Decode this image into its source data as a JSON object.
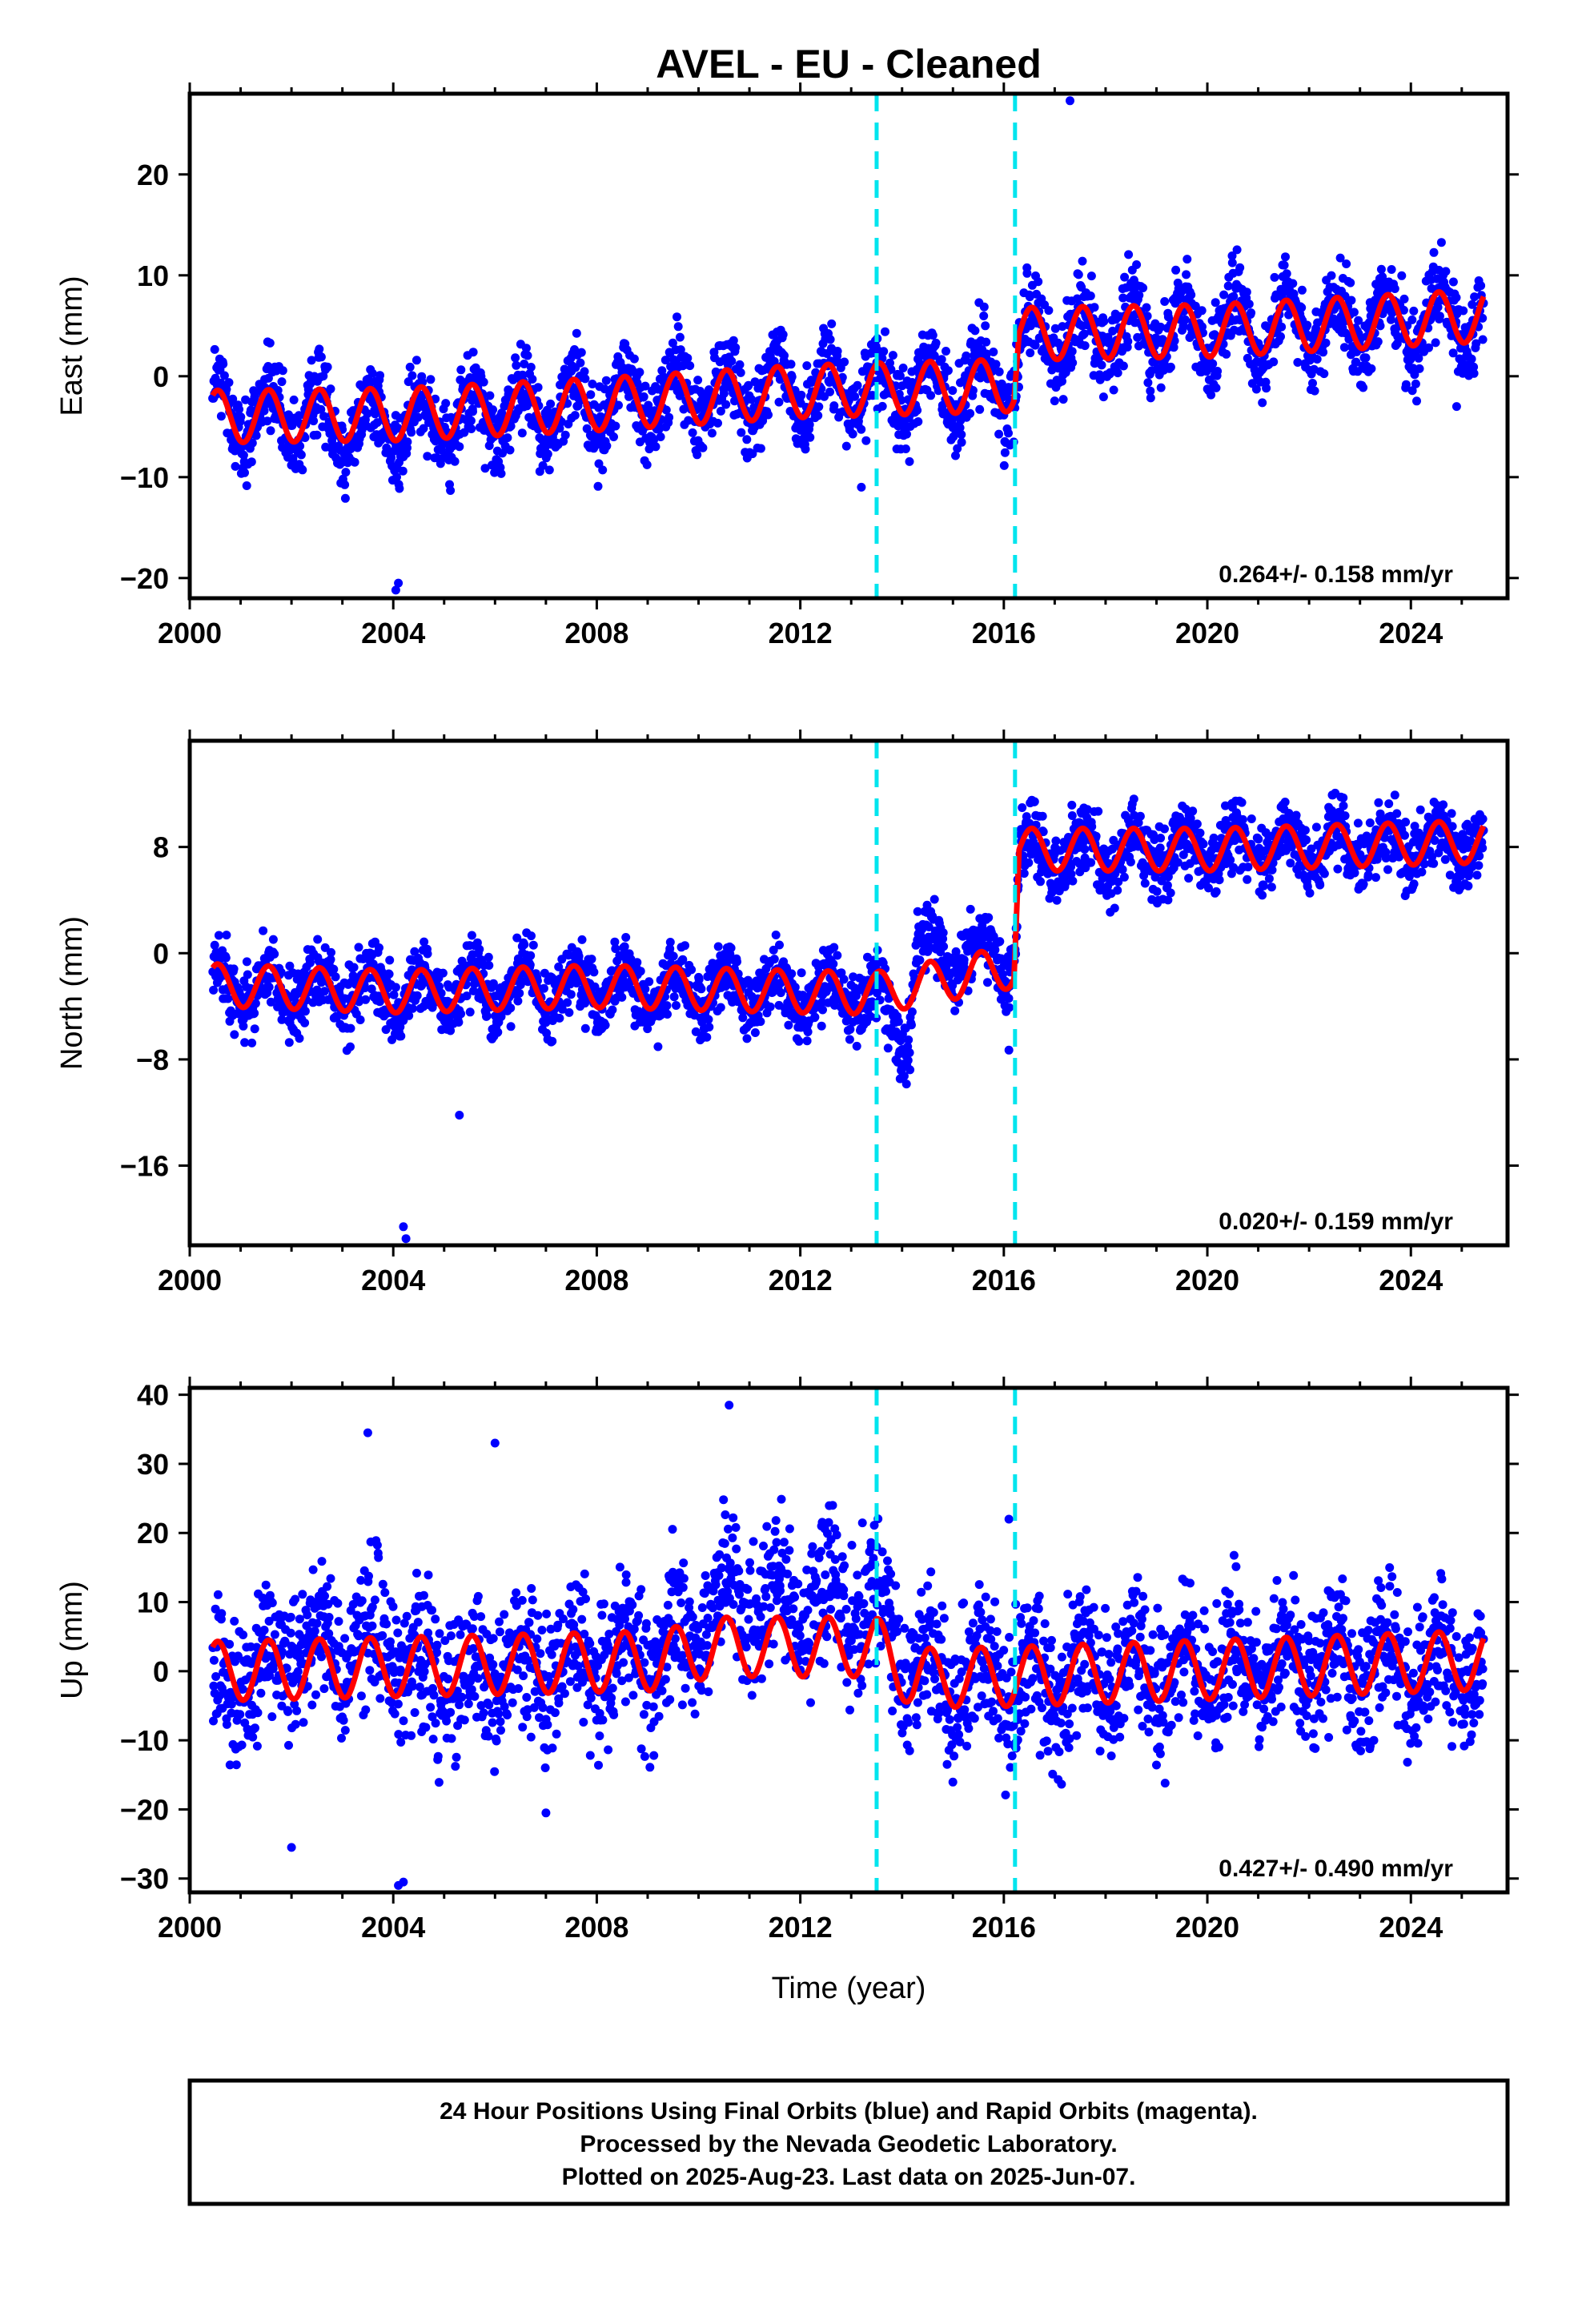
{
  "colors": {
    "data_points": "#0000ff",
    "model_line": "#ff0000",
    "offset_lines": "#00e5ee",
    "frame": "#000000"
  },
  "chart_data": [
    {
      "type": "scatter",
      "title": "AVEL  - EU - Cleaned",
      "ylabel": "East (mm)",
      "xlabel": "",
      "xlim": [
        2000,
        2025.9
      ],
      "ylim": [
        -22,
        28
      ],
      "xticks": [
        2000,
        2004,
        2008,
        2012,
        2016,
        2020,
        2024
      ],
      "yticks": [
        -20,
        -10,
        0,
        10,
        20
      ],
      "offset_epochs": [
        2013.5,
        2016.22
      ],
      "rate_annotation": "0.264+/- 0.158 mm/yr",
      "series": [
        {
          "label": "24-hour positions",
          "color": "#0000ff",
          "start": 2000.45,
          "end": 2025.43,
          "level_anchors": [
            [
              2000.45,
              -3.4
            ],
            [
              2004.0,
              -5.0
            ],
            [
              2008.0,
              -2.6
            ],
            [
              2012.0,
              -1.3
            ],
            [
              2016.2,
              -0.9
            ],
            [
              2016.3,
              4.0
            ],
            [
              2020.0,
              4.5
            ],
            [
              2025.43,
              5.8
            ]
          ],
          "seasonal_amplitude": 3.0,
          "scatter": 2.0,
          "sample_count": 2600,
          "outliers": [
            [
              2017.3,
              27.3
            ],
            [
              2004.1,
              -20.5
            ],
            [
              2004.05,
              -21.2
            ],
            [
              2013.2,
              -11.0
            ],
            [
              2024.9,
              -3.0
            ]
          ]
        },
        {
          "label": "model fit",
          "color": "#ff0000",
          "start": 2000.45,
          "end": 2025.43,
          "level_anchors": [
            [
              2000.45,
              -4.0
            ],
            [
              2004.0,
              -3.8
            ],
            [
              2008.0,
              -2.8
            ],
            [
              2012.0,
              -1.5
            ],
            [
              2016.2,
              -0.9
            ],
            [
              2016.3,
              4.2
            ],
            [
              2020.0,
              4.5
            ],
            [
              2025.43,
              6.0
            ]
          ],
          "seasonal_amplitude": 2.6
        }
      ]
    },
    {
      "type": "scatter",
      "title": "",
      "ylabel": "North (mm)",
      "xlabel": "",
      "xlim": [
        2000,
        2025.9
      ],
      "ylim": [
        -22,
        16
      ],
      "xticks": [
        2000,
        2004,
        2008,
        2012,
        2016,
        2020,
        2024
      ],
      "yticks": [
        -16,
        -8,
        0,
        8
      ],
      "offset_epochs": [
        2013.5,
        2016.22
      ],
      "rate_annotation": "0.020+/- 0.159 mm/yr",
      "series": [
        {
          "label": "24-hour positions",
          "color": "#0000ff",
          "start": 2000.45,
          "end": 2025.43,
          "level_anchors": [
            [
              2000.45,
              -2.5
            ],
            [
              2004.0,
              -3.0
            ],
            [
              2008.0,
              -2.5
            ],
            [
              2012.0,
              -3.0
            ],
            [
              2013.5,
              -3.2
            ],
            [
              2014.1,
              -6.5
            ],
            [
              2014.3,
              0.2
            ],
            [
              2016.2,
              -0.5
            ],
            [
              2016.3,
              7.5
            ],
            [
              2020.0,
              7.8
            ],
            [
              2025.43,
              8.3
            ]
          ],
          "seasonal_amplitude": 1.5,
          "scatter": 1.3,
          "sample_count": 2600,
          "outliers": [
            [
              2004.2,
              -20.6
            ],
            [
              2004.25,
              -21.5
            ],
            [
              2005.3,
              -12.2
            ],
            [
              2016.1,
              -7.3
            ]
          ]
        },
        {
          "label": "model fit",
          "color": "#ff0000",
          "start": 2000.45,
          "end": 2025.43,
          "level_anchors": [
            [
              2000.45,
              -2.4
            ],
            [
              2004.0,
              -2.9
            ],
            [
              2008.0,
              -2.5
            ],
            [
              2012.0,
              -2.9
            ],
            [
              2013.5,
              -3.0
            ],
            [
              2016.2,
              -1.0
            ],
            [
              2016.3,
              7.8
            ],
            [
              2020.0,
              7.8
            ],
            [
              2025.43,
              8.4
            ]
          ],
          "seasonal_amplitude": 1.6
        }
      ]
    },
    {
      "type": "scatter",
      "title": "",
      "ylabel": "Up (mm)",
      "xlabel": "Time (year)",
      "xlim": [
        2000,
        2025.9
      ],
      "ylim": [
        -32,
        41
      ],
      "xticks": [
        2000,
        2004,
        2008,
        2012,
        2016,
        2020,
        2024
      ],
      "yticks": [
        -30,
        -20,
        -10,
        0,
        10,
        20,
        30,
        40
      ],
      "offset_epochs": [
        2013.5,
        2016.22
      ],
      "rate_annotation": "0.427+/- 0.490 mm/yr",
      "series": [
        {
          "label": "24-hour positions",
          "color": "#0000ff",
          "start": 2000.45,
          "end": 2025.43,
          "level_anchors": [
            [
              2000.45,
              -2.0
            ],
            [
              2002.4,
              3.0
            ],
            [
              2003.8,
              4.0
            ],
            [
              2004.5,
              -1.0
            ],
            [
              2009.2,
              2.0
            ],
            [
              2010.3,
              10.0
            ],
            [
              2013.5,
              10.0
            ],
            [
              2014.1,
              0.0
            ],
            [
              2015.0,
              -2.0
            ],
            [
              2020.0,
              0.5
            ],
            [
              2025.43,
              1.0
            ]
          ],
          "seasonal_amplitude": 4.0,
          "scatter": 5.0,
          "sample_count": 2600,
          "outliers": [
            [
              2010.6,
              38.5
            ],
            [
              2006.0,
              33.0
            ],
            [
              2003.5,
              34.5
            ],
            [
              2004.2,
              -30.5
            ],
            [
              2004.1,
              -31.0
            ],
            [
              2002.0,
              -25.5
            ],
            [
              2016.1,
              22.0
            ],
            [
              2007.0,
              -20.5
            ]
          ]
        },
        {
          "label": "model fit",
          "color": "#ff0000",
          "start": 2000.45,
          "end": 2025.43,
          "level_anchors": [
            [
              2000.45,
              0.0
            ],
            [
              2009.2,
              1.5
            ],
            [
              2010.3,
              3.5
            ],
            [
              2013.5,
              3.5
            ],
            [
              2014.2,
              -1.0
            ],
            [
              2016.0,
              -0.8
            ],
            [
              2020.0,
              0.2
            ],
            [
              2025.43,
              1.6
            ]
          ],
          "seasonal_amplitude": 4.3
        }
      ]
    }
  ],
  "footer": {
    "line1": "24 Hour Positions Using Final Orbits (blue) and Rapid Orbits (magenta).",
    "line2": "Processed by the Nevada Geodetic Laboratory.",
    "line3": "Plotted on 2025-Aug-23. Last data on 2025-Jun-07."
  }
}
